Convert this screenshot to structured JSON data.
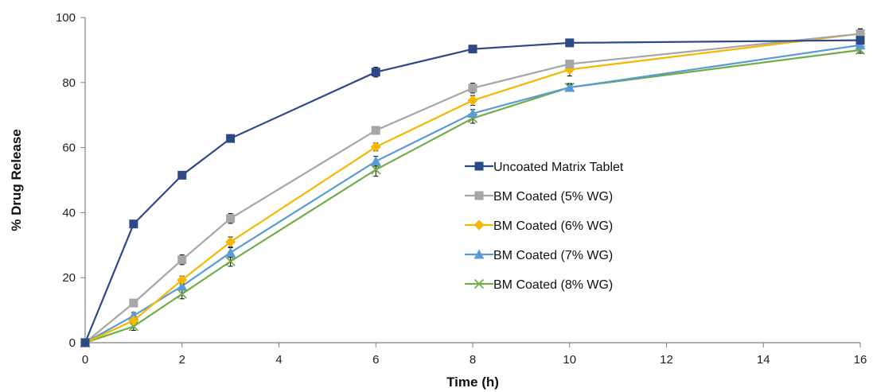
{
  "chart_data": {
    "type": "line",
    "title": "",
    "xlabel": "Time (h)",
    "ylabel": "% Drug Release",
    "xlim": [
      0,
      16
    ],
    "ylim": [
      0,
      100
    ],
    "xticks": [
      "0",
      "2",
      "4",
      "6",
      "8",
      "10",
      "12",
      "14",
      "16"
    ],
    "yticks": [
      "0",
      "20",
      "40",
      "60",
      "80",
      "100"
    ],
    "grid": false,
    "legend_position": "center-right",
    "series": [
      {
        "name": "Uncoated Matrix Tablet",
        "color": "#2e4a86",
        "marker": "square",
        "x": [
          0,
          1,
          2,
          3,
          6,
          8,
          10,
          16
        ],
        "y": [
          0,
          36.5,
          51.5,
          62.8,
          83.2,
          90.3,
          92.2,
          93.0
        ],
        "err": [
          0.5,
          0.8,
          0.8,
          0.8,
          1.5,
          0.8,
          0.8,
          1.0
        ]
      },
      {
        "name": "BM Coated (5% WG)",
        "color": "#a6a6a6",
        "marker": "square",
        "x": [
          0,
          1,
          2,
          3,
          6,
          8,
          10,
          16
        ],
        "y": [
          0,
          12.2,
          25.5,
          38.2,
          65.3,
          78.3,
          85.7,
          95.0
        ],
        "err": [
          0.5,
          0.8,
          1.5,
          1.5,
          1.2,
          1.5,
          1.2,
          1.5
        ]
      },
      {
        "name": "BM Coated (6% WG)",
        "color": "#f4b800",
        "marker": "diamond",
        "x": [
          0,
          1,
          2,
          3,
          6,
          8,
          10,
          16
        ],
        "y": [
          0,
          6.8,
          19.3,
          31.0,
          60.2,
          74.5,
          84.0,
          95.0
        ],
        "err": [
          0.5,
          0.8,
          1.2,
          1.5,
          1.2,
          1.5,
          2.0,
          1.5
        ]
      },
      {
        "name": "BM Coated (7% WG)",
        "color": "#5b9bd5",
        "marker": "triangle",
        "x": [
          0,
          1,
          2,
          3,
          6,
          8,
          10,
          16
        ],
        "y": [
          0,
          8.3,
          17.4,
          27.7,
          55.8,
          70.5,
          78.5,
          91.5
        ],
        "err": [
          0.5,
          1.0,
          1.2,
          1.5,
          1.5,
          1.2,
          1.0,
          1.0
        ]
      },
      {
        "name": "BM Coated (8% WG)",
        "color": "#70ad47",
        "marker": "x",
        "x": [
          0,
          1,
          2,
          3,
          6,
          8,
          10,
          16
        ],
        "y": [
          0,
          5.0,
          15.0,
          25.0,
          53.2,
          69.0,
          78.5,
          90.0
        ],
        "err": [
          0.5,
          1.2,
          1.5,
          1.5,
          2.0,
          1.5,
          1.2,
          1.0
        ]
      }
    ]
  }
}
